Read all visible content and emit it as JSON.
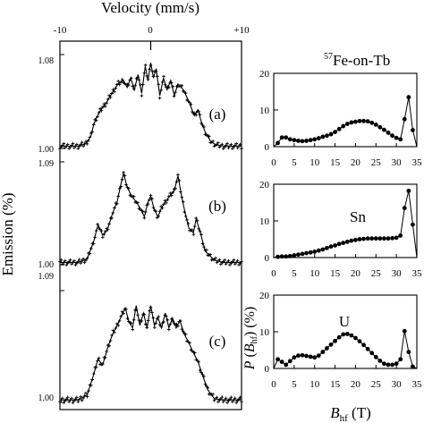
{
  "figure": {
    "velocity_axis": {
      "label": "Velocity (mm/s)",
      "ticks": [
        "-10",
        "0",
        "+10"
      ]
    },
    "emission_axis_label": "Emission (%)",
    "right_title_mass": "57",
    "right_title_text": "Fe-on-Tb",
    "x_axis_label_main": "B",
    "x_axis_label_sub": "hf",
    "x_axis_label_unit": " (T)",
    "y_axis_label_p": "P",
    "y_axis_label_b": "B",
    "y_axis_label_sub": "hf",
    "y_axis_label_unit": "(%)"
  },
  "chart_data": [
    {
      "type": "line",
      "panel": "(a)",
      "x_unit": "mm/s",
      "xlim": [
        -10,
        10
      ],
      "ylim": [
        1.0,
        1.08
      ],
      "ytick_labels": [
        "1.08",
        "1.00"
      ],
      "x": [
        -10,
        -8,
        -7.2,
        -6.6,
        -6.3,
        -6,
        -5.4,
        -4.8,
        -4.2,
        -3.6,
        -3,
        -2.6,
        -2.2,
        -1.8,
        -1.4,
        -1,
        -0.6,
        -0.3,
        0,
        0.3,
        0.6,
        1,
        1.4,
        1.8,
        2.2,
        2.6,
        3,
        3.6,
        4.2,
        4.8,
        5.2,
        5.6,
        6,
        6.6,
        7.2,
        8,
        10
      ],
      "y": [
        1.002,
        1.002,
        1.004,
        1.01,
        1.02,
        1.026,
        1.034,
        1.04,
        1.048,
        1.055,
        1.058,
        1.052,
        1.06,
        1.05,
        1.063,
        1.047,
        1.07,
        1.058,
        1.073,
        1.06,
        1.068,
        1.045,
        1.06,
        1.05,
        1.058,
        1.045,
        1.055,
        1.05,
        1.04,
        1.028,
        1.033,
        1.022,
        1.014,
        1.006,
        1.003,
        1.002,
        1.002
      ]
    },
    {
      "type": "line",
      "panel": "(b)",
      "x_unit": "mm/s",
      "xlim": [
        -10,
        10
      ],
      "ylim": [
        1.0,
        1.09
      ],
      "ytick_labels": [
        "1.09",
        "1.00"
      ],
      "x": [
        -10,
        -8,
        -7,
        -6.3,
        -5.8,
        -5.3,
        -4.8,
        -4.2,
        -3.7,
        -3.3,
        -3,
        -2.6,
        -2.1,
        -1.6,
        -1.2,
        -0.7,
        -0.3,
        0,
        0.4,
        0.8,
        1.2,
        1.6,
        2.1,
        2.6,
        3,
        3.4,
        3.8,
        4.2,
        4.7,
        5,
        5.4,
        6,
        7,
        8,
        10
      ],
      "y": [
        1.002,
        1.002,
        1.005,
        1.02,
        1.035,
        1.026,
        1.03,
        1.045,
        1.055,
        1.07,
        1.08,
        1.068,
        1.06,
        1.055,
        1.05,
        1.042,
        1.055,
        1.06,
        1.048,
        1.042,
        1.05,
        1.055,
        1.06,
        1.065,
        1.078,
        1.06,
        1.045,
        1.032,
        1.028,
        1.04,
        1.03,
        1.012,
        1.004,
        1.002,
        1.002
      ]
    },
    {
      "type": "line",
      "panel": "(c)",
      "x_unit": "mm/s",
      "xlim": [
        -10,
        10
      ],
      "ylim": [
        1.0,
        1.09
      ],
      "ytick_labels": [
        "1.09",
        "1.00"
      ],
      "x": [
        -10,
        -8,
        -7,
        -6.3,
        -5.8,
        -5.3,
        -4.7,
        -4.2,
        -3.7,
        -3.2,
        -2.8,
        -2.4,
        -2,
        -1.6,
        -1.2,
        -0.8,
        -0.4,
        0,
        0.4,
        0.8,
        1.2,
        1.6,
        2,
        2.4,
        2.8,
        3.2,
        3.7,
        4.2,
        4.7,
        5.2,
        5.7,
        6.3,
        7,
        8,
        10
      ],
      "y": [
        1.002,
        1.002,
        1.006,
        1.022,
        1.035,
        1.03,
        1.045,
        1.055,
        1.062,
        1.07,
        1.076,
        1.065,
        1.06,
        1.078,
        1.062,
        1.072,
        1.06,
        1.078,
        1.062,
        1.068,
        1.06,
        1.072,
        1.06,
        1.068,
        1.06,
        1.066,
        1.055,
        1.048,
        1.04,
        1.033,
        1.022,
        1.01,
        1.003,
        1.002,
        1.002
      ]
    },
    {
      "type": "line",
      "panel": "57Fe-on-Tb",
      "x_unit": "T",
      "xlim": [
        0,
        35
      ],
      "ylim": [
        0,
        20
      ],
      "xticks": [
        0,
        5,
        10,
        15,
        20,
        25,
        30,
        35
      ],
      "yticks": [
        0,
        10,
        20
      ],
      "x": [
        0,
        1,
        2,
        3,
        4,
        5,
        6,
        7,
        8,
        9,
        10,
        11,
        12,
        13,
        14,
        15,
        16,
        17,
        18,
        19,
        20,
        21,
        22,
        23,
        24,
        25,
        26,
        27,
        28,
        29,
        30,
        31,
        32,
        33,
        34,
        35
      ],
      "y": [
        0,
        1.0,
        2.5,
        2.5,
        2.0,
        1.8,
        1.6,
        1.5,
        1.6,
        1.8,
        2.0,
        2.3,
        2.7,
        3.0,
        3.4,
        4.0,
        4.8,
        5.6,
        6.2,
        6.6,
        6.8,
        7.0,
        7.0,
        6.9,
        6.5,
        6.0,
        5.3,
        4.6,
        3.8,
        3.0,
        2.4,
        2.0,
        7.5,
        13.5,
        4.5,
        0
      ]
    },
    {
      "type": "line",
      "panel": "Sn",
      "x_unit": "T",
      "xlim": [
        0,
        35
      ],
      "ylim": [
        0,
        20
      ],
      "xticks": [
        0,
        5,
        10,
        15,
        20,
        25,
        30,
        35
      ],
      "yticks": [
        0,
        10,
        20
      ],
      "x": [
        0,
        1,
        2,
        3,
        4,
        5,
        6,
        7,
        8,
        9,
        10,
        11,
        12,
        13,
        14,
        15,
        16,
        17,
        18,
        19,
        20,
        21,
        22,
        23,
        24,
        25,
        26,
        27,
        28,
        29,
        30,
        31,
        32,
        33,
        34,
        35
      ],
      "y": [
        0,
        0.2,
        0.3,
        0.3,
        0.4,
        0.6,
        0.8,
        1.0,
        1.2,
        1.4,
        1.6,
        1.9,
        2.2,
        2.6,
        3.0,
        3.3,
        3.7,
        4.0,
        4.3,
        4.6,
        4.8,
        5.0,
        5.1,
        5.2,
        5.2,
        5.2,
        5.2,
        5.2,
        5.2,
        5.3,
        5.4,
        6.0,
        13.5,
        18.2,
        9.0,
        0
      ]
    },
    {
      "type": "line",
      "panel": "U",
      "x_unit": "T",
      "xlim": [
        0,
        35
      ],
      "ylim": [
        0,
        20
      ],
      "xticks": [
        0,
        5,
        10,
        15,
        20,
        25,
        30,
        35
      ],
      "yticks": [
        0,
        10,
        20
      ],
      "x": [
        0,
        1,
        2,
        3,
        4,
        5,
        6,
        7,
        8,
        9,
        10,
        11,
        12,
        13,
        14,
        15,
        16,
        17,
        18,
        19,
        20,
        21,
        22,
        23,
        24,
        25,
        26,
        27,
        28,
        29,
        30,
        31,
        32,
        33,
        34,
        35
      ],
      "y": [
        0,
        2.5,
        1.8,
        1.0,
        2.0,
        3.0,
        3.5,
        3.6,
        3.4,
        3.2,
        3.0,
        3.5,
        4.5,
        5.5,
        6.5,
        7.5,
        8.5,
        9.3,
        9.4,
        9.0,
        8.3,
        7.4,
        6.4,
        5.3,
        4.2,
        3.1,
        2.1,
        1.3,
        1.0,
        1.0,
        1.3,
        2.5,
        10.2,
        4.5,
        0.5,
        0
      ]
    }
  ]
}
